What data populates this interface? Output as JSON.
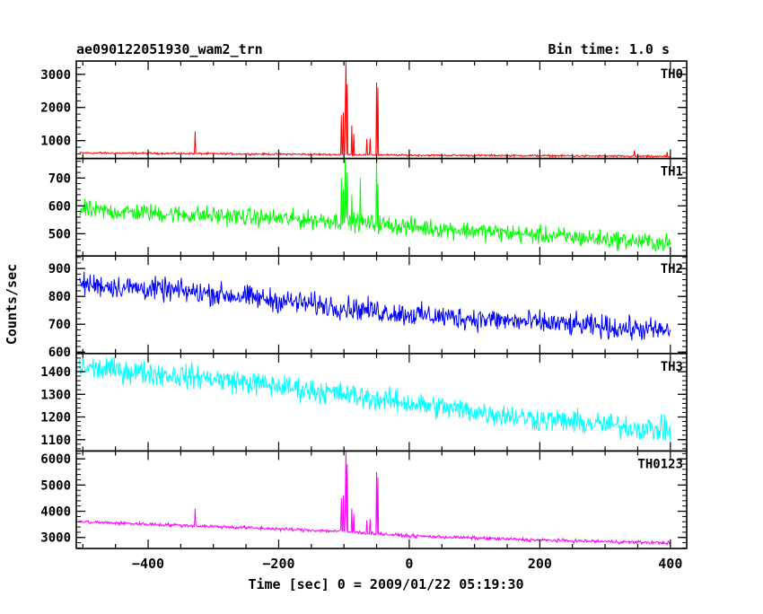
{
  "header": {
    "title": "ae090122051930_wam2_trn",
    "bin_time": "Bin time: 1.0 s"
  },
  "chart_data": {
    "type": "line",
    "title": "ae090122051930_wam2_trn",
    "subtitle": "Bin time: 1.0 s",
    "xlabel": "Time [sec] 0 = 2009/01/22 05:19:30",
    "ylabel": "Counts/sec",
    "xlim": [
      -510,
      425
    ],
    "x_ticks": [
      -400,
      -200,
      0,
      200,
      400
    ],
    "x_tick_labels": [
      "−400",
      "−200",
      "0",
      "200",
      "400"
    ],
    "grid": false,
    "legend": "none",
    "panels": [
      {
        "name": "TH0",
        "color": "#ff0000",
        "ylim": [
          460,
          3400
        ],
        "y_ticks": [
          1000,
          2000,
          3000
        ],
        "y_tick_labels": [
          "1000",
          "2000",
          "3000"
        ],
        "baseline": [
          [
            -505,
            630
          ],
          [
            -100,
            580
          ],
          [
            0,
            560
          ],
          [
            200,
            545
          ],
          [
            400,
            520
          ]
        ],
        "noise": 25,
        "spikes": [
          {
            "x": -328,
            "y": 1280
          },
          {
            "x": -104,
            "y": 1760
          },
          {
            "x": -101,
            "y": 1850
          },
          {
            "x": -98,
            "y": 1920
          },
          {
            "x": -97,
            "y": 3400
          },
          {
            "x": -95,
            "y": 2700
          },
          {
            "x": -88,
            "y": 1450
          },
          {
            "x": -85,
            "y": 1200
          },
          {
            "x": -65,
            "y": 1050
          },
          {
            "x": -60,
            "y": 1070
          },
          {
            "x": -50,
            "y": 2750
          },
          {
            "x": -48,
            "y": 2600
          },
          {
            "x": 345,
            "y": 710
          },
          {
            "x": 395,
            "y": 660
          }
        ]
      },
      {
        "name": "TH1",
        "color": "#00ff00",
        "ylim": [
          420,
          770
        ],
        "y_ticks": [
          500,
          600,
          700
        ],
        "y_tick_labels": [
          "500",
          "600",
          "700"
        ],
        "baseline": [
          [
            -505,
            585
          ],
          [
            -300,
            565
          ],
          [
            -100,
            545
          ],
          [
            0,
            525
          ],
          [
            200,
            495
          ],
          [
            400,
            465
          ]
        ],
        "noise": 28,
        "spikes": [
          {
            "x": -104,
            "y": 700
          },
          {
            "x": -101,
            "y": 660
          },
          {
            "x": -98,
            "y": 770
          },
          {
            "x": -95,
            "y": 720
          },
          {
            "x": -88,
            "y": 640
          },
          {
            "x": -75,
            "y": 700
          },
          {
            "x": -50,
            "y": 770
          },
          {
            "x": -48,
            "y": 680
          }
        ]
      },
      {
        "name": "TH2",
        "color": "#0000ff",
        "ylim": [
          595,
          945
        ],
        "y_ticks": [
          600,
          700,
          800,
          900
        ],
        "y_tick_labels": [
          "600",
          "700",
          "800",
          "900"
        ],
        "baseline": [
          [
            -505,
            845
          ],
          [
            -300,
            810
          ],
          [
            -100,
            760
          ],
          [
            0,
            735
          ],
          [
            200,
            705
          ],
          [
            400,
            675
          ]
        ],
        "noise": 35,
        "spikes": []
      },
      {
        "name": "TH3",
        "color": "#00ffff",
        "ylim": [
          1050,
          1480
        ],
        "y_ticks": [
          1100,
          1200,
          1300,
          1400
        ],
        "y_tick_labels": [
          "1100",
          "1200",
          "1300",
          "1400"
        ],
        "baseline": [
          [
            -505,
            1420
          ],
          [
            -300,
            1370
          ],
          [
            -100,
            1300
          ],
          [
            0,
            1260
          ],
          [
            200,
            1190
          ],
          [
            400,
            1140
          ]
        ],
        "noise": 45,
        "spikes": []
      },
      {
        "name": "TH0123",
        "color": "#ff00ff",
        "ylim": [
          2580,
          6300
        ],
        "y_ticks": [
          3000,
          4000,
          5000,
          6000
        ],
        "y_tick_labels": [
          "3000",
          "4000",
          "5000",
          "6000"
        ],
        "baseline": [
          [
            -505,
            3600
          ],
          [
            -300,
            3420
          ],
          [
            -100,
            3230
          ],
          [
            0,
            3060
          ],
          [
            200,
            2900
          ],
          [
            400,
            2790
          ]
        ],
        "noise": 55,
        "spikes": [
          {
            "x": -328,
            "y": 4100
          },
          {
            "x": -104,
            "y": 4500
          },
          {
            "x": -101,
            "y": 4600
          },
          {
            "x": -98,
            "y": 4200
          },
          {
            "x": -97,
            "y": 6300
          },
          {
            "x": -95,
            "y": 5800
          },
          {
            "x": -88,
            "y": 4100
          },
          {
            "x": -85,
            "y": 3900
          },
          {
            "x": -65,
            "y": 3650
          },
          {
            "x": -60,
            "y": 3700
          },
          {
            "x": -50,
            "y": 5500
          },
          {
            "x": -48,
            "y": 5300
          }
        ]
      }
    ]
  }
}
